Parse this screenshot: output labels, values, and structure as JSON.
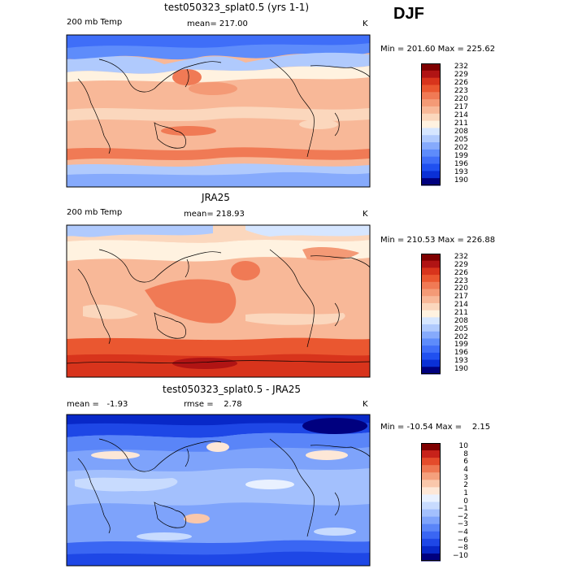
{
  "season": "DJF",
  "units": "K",
  "colors": {
    "temp_scale": [
      "#00007f",
      "#0a30d6",
      "#2050f0",
      "#3f6ef8",
      "#5e8cfb",
      "#86aafc",
      "#b0cafd",
      "#d6e6ff",
      "#fff2e0",
      "#fbd7bd",
      "#f8b898",
      "#f49a76",
      "#f07a55",
      "#ea5730",
      "#d8341c",
      "#b01414",
      "#7f0000"
    ],
    "diff_scale": [
      "#00007f",
      "#0828c8",
      "#1e47e6",
      "#3a66f3",
      "#5a85f8",
      "#7ea3fb",
      "#a3c0fd",
      "#c8dbfe",
      "#e9f1ff",
      "#fde7d7",
      "#f9c7ab",
      "#f4a07d",
      "#ee7752",
      "#e44b2b",
      "#c7221a",
      "#7f0000"
    ]
  },
  "panels": [
    {
      "title": "test050323_splat0.5 (yrs 1-1)",
      "left_label": "200 mb Temp",
      "stat_text": "mean= 217.00",
      "units": "K",
      "minmax": "Min = 201.60 Max = 225.62",
      "colorbar_labels": [
        "232",
        "229",
        "226",
        "223",
        "220",
        "217",
        "214",
        "211",
        "208",
        "205",
        "202",
        "199",
        "196",
        "193",
        "190"
      ]
    },
    {
      "title": "JRA25",
      "left_label": "200 mb Temp",
      "stat_text": "mean= 218.93",
      "units": "K",
      "minmax": "Min = 210.53 Max = 226.88",
      "colorbar_labels": [
        "232",
        "229",
        "226",
        "223",
        "220",
        "217",
        "214",
        "211",
        "208",
        "205",
        "202",
        "199",
        "196",
        "193",
        "190"
      ]
    },
    {
      "title": "test050323_splat0.5 - JRA25",
      "left_label": "mean =   -1.93",
      "stat_text": "rmse =    2.78",
      "units": "K",
      "minmax": "Min = -10.54 Max =    2.15",
      "colorbar_labels": [
        "10",
        "8",
        "6",
        "4",
        "3",
        "2",
        "1",
        "0",
        "−1",
        "−2",
        "−3",
        "−4",
        "−6",
        "−8",
        "−10"
      ]
    }
  ],
  "chart_data": [
    {
      "type": "heatmap",
      "title": "test050323_splat0.5 (yrs 1-1)",
      "variable": "200 mb Temp",
      "units": "K",
      "mean": 217.0,
      "min": 201.6,
      "max": 225.62,
      "contour_levels": [
        190,
        193,
        196,
        199,
        202,
        205,
        208,
        211,
        214,
        217,
        220,
        223,
        226,
        229,
        232
      ],
      "dominant_pattern": "Cold (blue, ~199-208 K) in high latitudes of both hemispheres; warm (orange, ~217-223 K) across mid-latitudes and tropics, with warm maxima over the North Pacific near Japan"
    },
    {
      "type": "heatmap",
      "title": "JRA25",
      "variable": "200 mb Temp",
      "units": "K",
      "mean": 218.93,
      "min": 210.53,
      "max": 226.88,
      "contour_levels": [
        190,
        193,
        196,
        199,
        202,
        205,
        208,
        211,
        214,
        217,
        220,
        223,
        226,
        229,
        232
      ],
      "dominant_pattern": "Broad warm field (~217-223 K) across tropics, warmest (~223-226 K) in southern high latitudes; light blue (~208-214 K) patches in northern high latitudes"
    },
    {
      "type": "heatmap",
      "title": "test050323_splat0.5 - JRA25",
      "variable": "difference",
      "units": "K",
      "mean": -1.93,
      "rmse": 2.78,
      "min": -10.54,
      "max": 2.15,
      "contour_levels": [
        -10,
        -8,
        -6,
        -4,
        -3,
        -2,
        -1,
        0,
        1,
        2,
        3,
        4,
        6,
        8,
        10
      ],
      "dominant_pattern": "Mostly negative (blue) differences, strongest (-6 to -10) at high latitudes; weak positive (~0 to 2) patches in the tropics"
    }
  ]
}
